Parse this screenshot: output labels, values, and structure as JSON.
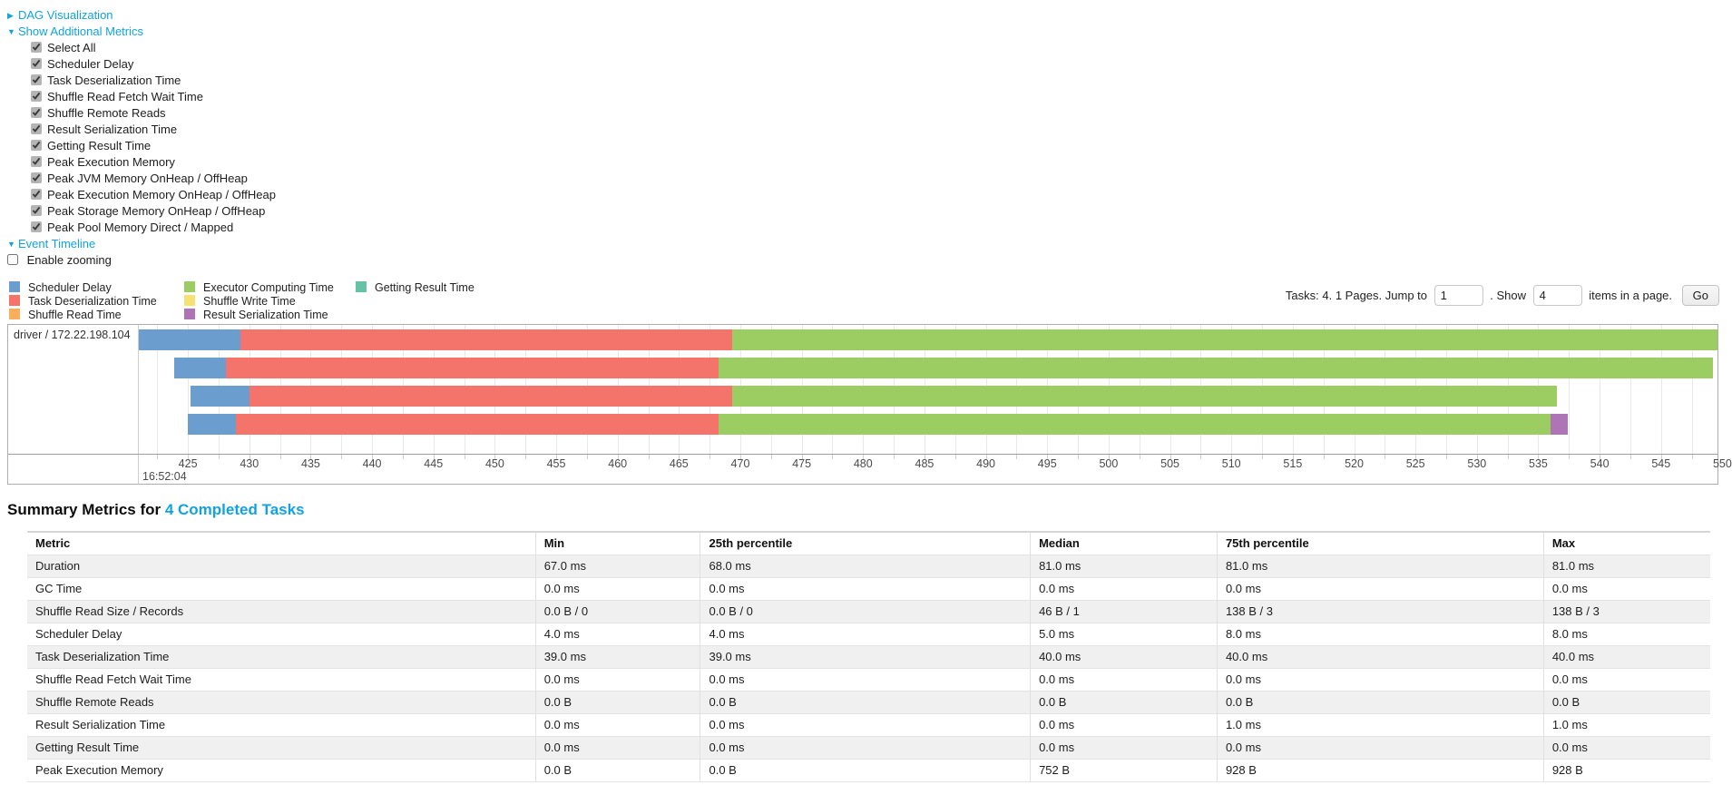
{
  "toggles": {
    "dag_label": "DAG Visualization",
    "dag_arrow": "▶",
    "additional_metrics_label": "Show Additional Metrics",
    "additional_metrics_arrow": "▼",
    "event_timeline_label": "Event Timeline",
    "event_timeline_arrow": "▼",
    "enable_zooming_label": "Enable zooming"
  },
  "metric_checkboxes": [
    {
      "label": "Select All",
      "checked": true
    },
    {
      "label": "Scheduler Delay",
      "checked": true
    },
    {
      "label": "Task Deserialization Time",
      "checked": true
    },
    {
      "label": "Shuffle Read Fetch Wait Time",
      "checked": true
    },
    {
      "label": "Shuffle Remote Reads",
      "checked": true
    },
    {
      "label": "Result Serialization Time",
      "checked": true
    },
    {
      "label": "Getting Result Time",
      "checked": true
    },
    {
      "label": "Peak Execution Memory",
      "checked": true
    },
    {
      "label": "Peak JVM Memory OnHeap / OffHeap",
      "checked": true
    },
    {
      "label": "Peak Execution Memory OnHeap / OffHeap",
      "checked": true
    },
    {
      "label": "Peak Storage Memory OnHeap / OffHeap",
      "checked": true
    },
    {
      "label": "Peak Pool Memory Direct / Mapped",
      "checked": true
    }
  ],
  "enable_zooming_checked": false,
  "pagination": {
    "prefix": "Tasks: 4. 1 Pages. Jump to",
    "jump_value": "1",
    "mid": ". Show",
    "show_value": "4",
    "suffix": "items in a page.",
    "go_label": "Go"
  },
  "legend": [
    {
      "key": "scheduler-delay",
      "label": "Scheduler Delay",
      "color": "#6B9ECF"
    },
    {
      "key": "task-deserialization",
      "label": "Task Deserialization Time",
      "color": "#F4736A"
    },
    {
      "key": "shuffle-read",
      "label": "Shuffle Read Time",
      "color": "#F8AE5D"
    },
    {
      "key": "executor-computing",
      "label": "Executor Computing Time",
      "color": "#9CCD62"
    },
    {
      "key": "shuffle-write",
      "label": "Shuffle Write Time",
      "color": "#F5E273"
    },
    {
      "key": "result-serialization",
      "label": "Result Serialization Time",
      "color": "#AF74B5"
    },
    {
      "key": "getting-result",
      "label": "Getting Result Time",
      "color": "#65C2A4"
    }
  ],
  "timeline": {
    "executor_label": "driver / 172.22.198.104",
    "axis_major_label": "16:52:04",
    "domain": [
      421,
      549.6
    ],
    "major_ticks": [
      425,
      430,
      435,
      440,
      445,
      450,
      455,
      460,
      465,
      470,
      475,
      480,
      485,
      490,
      495,
      500,
      505,
      510,
      515,
      520,
      525,
      530,
      535,
      540,
      545,
      550
    ],
    "minor_start": 422.5,
    "minor_end": 547.5,
    "minor_step": 2.5,
    "rows": [
      [
        {
          "t": "scheduler-delay",
          "s": 421.0,
          "e": 429.3
        },
        {
          "t": "task-deserialization",
          "s": 429.3,
          "e": 469.3
        },
        {
          "t": "executor-computing",
          "s": 469.3,
          "e": 549.6
        }
      ],
      [
        {
          "t": "scheduler-delay",
          "s": 423.9,
          "e": 428.1
        },
        {
          "t": "task-deserialization",
          "s": 428.1,
          "e": 468.2
        },
        {
          "t": "executor-computing",
          "s": 468.2,
          "e": 549.2
        }
      ],
      [
        {
          "t": "scheduler-delay",
          "s": 425.2,
          "e": 430.0
        },
        {
          "t": "task-deserialization",
          "s": 430.0,
          "e": 469.3
        },
        {
          "t": "executor-computing",
          "s": 469.3,
          "e": 536.5
        }
      ],
      [
        {
          "t": "scheduler-delay",
          "s": 425.0,
          "e": 428.9
        },
        {
          "t": "task-deserialization",
          "s": 428.9,
          "e": 468.2
        },
        {
          "t": "executor-computing",
          "s": 468.2,
          "e": 536.0
        },
        {
          "t": "result-serialization",
          "s": 536.0,
          "e": 537.4
        }
      ]
    ]
  },
  "summary": {
    "title_prefix": "Summary Metrics for ",
    "title_link": "4 Completed Tasks",
    "columns": [
      "Metric",
      "Min",
      "25th percentile",
      "Median",
      "75th percentile",
      "Max"
    ],
    "rows": [
      [
        "Duration",
        "67.0 ms",
        "68.0 ms",
        "81.0 ms",
        "81.0 ms",
        "81.0 ms"
      ],
      [
        "GC Time",
        "0.0 ms",
        "0.0 ms",
        "0.0 ms",
        "0.0 ms",
        "0.0 ms"
      ],
      [
        "Shuffle Read Size / Records",
        "0.0 B / 0",
        "0.0 B / 0",
        "46 B / 1",
        "138 B / 3",
        "138 B / 3"
      ],
      [
        "Scheduler Delay",
        "4.0 ms",
        "4.0 ms",
        "5.0 ms",
        "8.0 ms",
        "8.0 ms"
      ],
      [
        "Task Deserialization Time",
        "39.0 ms",
        "39.0 ms",
        "40.0 ms",
        "40.0 ms",
        "40.0 ms"
      ],
      [
        "Shuffle Read Fetch Wait Time",
        "0.0 ms",
        "0.0 ms",
        "0.0 ms",
        "0.0 ms",
        "0.0 ms"
      ],
      [
        "Shuffle Remote Reads",
        "0.0 B",
        "0.0 B",
        "0.0 B",
        "0.0 B",
        "0.0 B"
      ],
      [
        "Result Serialization Time",
        "0.0 ms",
        "0.0 ms",
        "0.0 ms",
        "1.0 ms",
        "1.0 ms"
      ],
      [
        "Getting Result Time",
        "0.0 ms",
        "0.0 ms",
        "0.0 ms",
        "0.0 ms",
        "0.0 ms"
      ],
      [
        "Peak Execution Memory",
        "0.0 B",
        "0.0 B",
        "752 B",
        "928 B",
        "928 B"
      ]
    ]
  }
}
